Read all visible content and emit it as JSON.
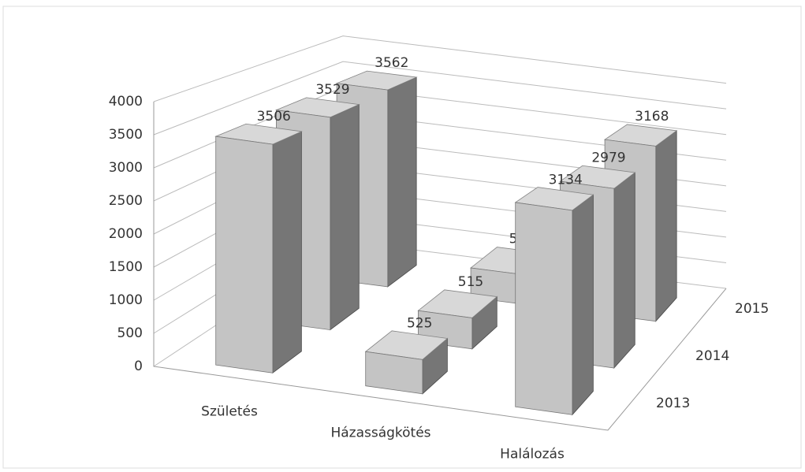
{
  "chart_data": {
    "type": "bar3d",
    "categories": [
      "Születés",
      "Házasságkötés",
      "Halálozás"
    ],
    "series": [
      {
        "name": "2013",
        "color": "#c4c4c4",
        "values": [
          3506,
          525,
          3134
        ]
      },
      {
        "name": "2014",
        "color": "#c4c4c4",
        "values": [
          3529,
          515,
          2979
        ]
      },
      {
        "name": "2015",
        "color": "#c4c4c4",
        "values": [
          3562,
          535,
          3168
        ]
      }
    ],
    "ylim": [
      0,
      4000
    ],
    "yticks": [
      0,
      500,
      1000,
      1500,
      2000,
      2500,
      3000,
      3500,
      4000
    ],
    "grid": true
  }
}
